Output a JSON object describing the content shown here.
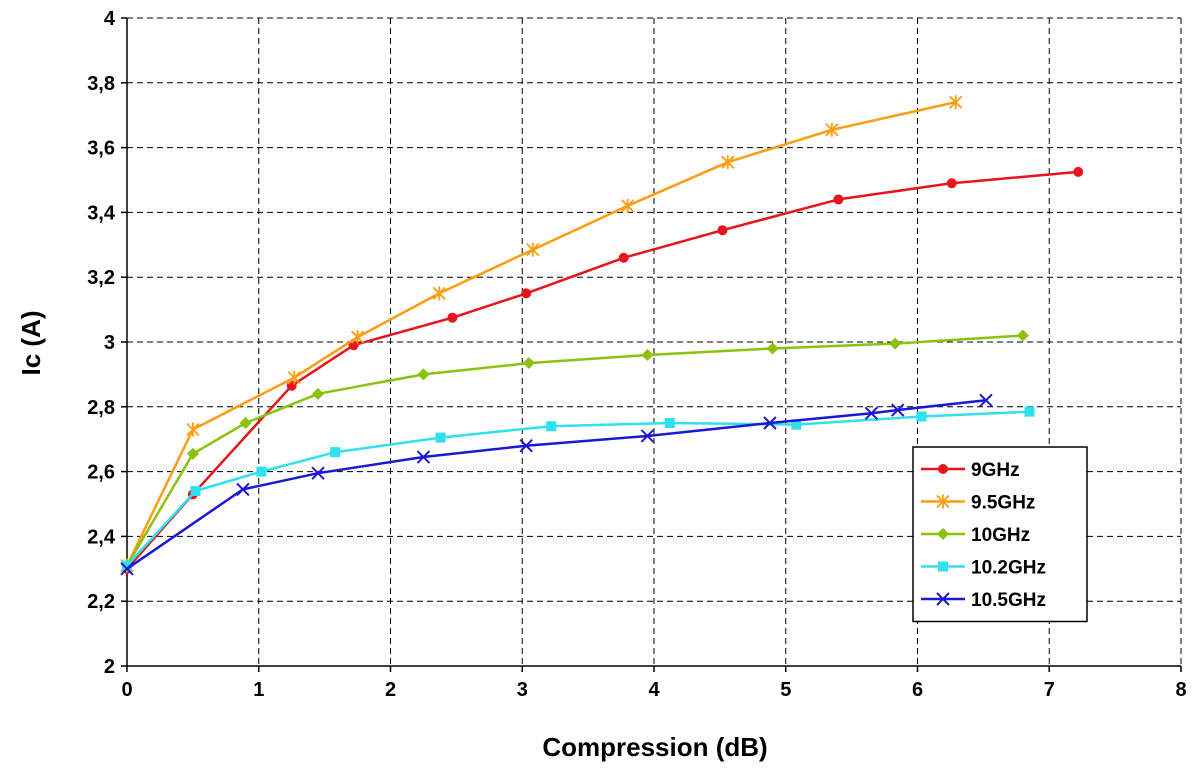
{
  "chart_data": {
    "type": "line",
    "title": "",
    "xlabel": "Compression (dB)",
    "ylabel": "Ic (A)",
    "xlim": [
      0,
      8
    ],
    "ylim": [
      2,
      4
    ],
    "xticks": [
      "0",
      "1",
      "2",
      "3",
      "4",
      "5",
      "6",
      "7",
      "8"
    ],
    "yticks": [
      "2",
      "2,2",
      "2,4",
      "2,6",
      "2,8",
      "3",
      "3,2",
      "3,4",
      "3,6",
      "3,8",
      "4"
    ],
    "grid": true,
    "legend": "lower-right",
    "series": [
      {
        "name": "9GHz",
        "color": "#e8131b",
        "marker": "circle",
        "x": [
          0,
          0.5,
          1.25,
          1.72,
          2.47,
          3.03,
          3.77,
          4.52,
          5.4,
          6.26,
          7.22
        ],
        "y": [
          2.3,
          2.53,
          2.865,
          2.99,
          3.075,
          3.15,
          3.26,
          3.345,
          3.44,
          3.49,
          3.525
        ]
      },
      {
        "name": "9.5GHz",
        "color": "#ff9c0f",
        "marker": "asterisk",
        "x": [
          0,
          0.5,
          1.27,
          1.75,
          2.37,
          3.08,
          3.8,
          4.56,
          5.35,
          6.29
        ],
        "y": [
          2.31,
          2.73,
          2.89,
          3.015,
          3.15,
          3.285,
          3.42,
          3.555,
          3.655,
          3.74
        ]
      },
      {
        "name": "10GHz",
        "color": "#8cc20e",
        "marker": "diamond",
        "x": [
          0,
          0.5,
          0.9,
          1.45,
          2.25,
          3.05,
          3.95,
          4.9,
          5.83,
          6.8
        ],
        "y": [
          2.31,
          2.655,
          2.75,
          2.84,
          2.9,
          2.935,
          2.96,
          2.98,
          2.995,
          3.02
        ]
      },
      {
        "name": "10.2GHz",
        "color": "#2fe1ec",
        "marker": "square",
        "x": [
          0,
          0.52,
          1.02,
          1.58,
          2.38,
          3.22,
          4.12,
          5.08,
          6.03,
          6.85
        ],
        "y": [
          2.31,
          2.54,
          2.6,
          2.66,
          2.705,
          2.74,
          2.75,
          2.745,
          2.77,
          2.785
        ]
      },
      {
        "name": "10.5GHz",
        "color": "#1c17d6",
        "marker": "x",
        "x": [
          0,
          0.88,
          1.45,
          2.25,
          3.03,
          3.95,
          4.88,
          5.65,
          5.85,
          6.52
        ],
        "y": [
          2.3,
          2.545,
          2.595,
          2.645,
          2.68,
          2.71,
          2.75,
          2.78,
          2.79,
          2.82
        ]
      }
    ]
  }
}
